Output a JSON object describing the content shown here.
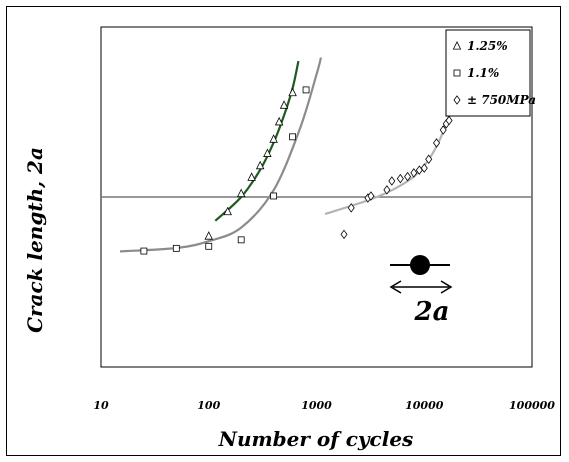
{
  "chart_data": {
    "type": "scatter",
    "title": "",
    "xlabel": "Number of cycles",
    "ylabel": "Crack length, 2a",
    "xscale": "log",
    "xlim": [
      10,
      100000
    ],
    "ylim": [
      0,
      1
    ],
    "x_tick_labels": [
      "10",
      "100",
      "1000",
      "10000",
      "100000"
    ],
    "x_tick_values": [
      10,
      100,
      1000,
      10000,
      100000
    ],
    "reference_line_y": 0.5,
    "legend": {
      "position": "top-right"
    },
    "series": [
      {
        "name": "1.25%",
        "marker": "triangle",
        "color": "#000000",
        "points": [
          [
            100,
            0.385
          ],
          [
            150,
            0.457
          ],
          [
            200,
            0.51
          ],
          [
            250,
            0.558
          ],
          [
            300,
            0.592
          ],
          [
            350,
            0.628
          ],
          [
            400,
            0.67
          ],
          [
            450,
            0.721
          ],
          [
            500,
            0.77
          ],
          [
            600,
            0.807
          ]
        ],
        "fit": {
          "color": "#1f5a1f",
          "points": [
            [
              115,
              0.43
            ],
            [
              200,
              0.5
            ],
            [
              300,
              0.58
            ],
            [
              400,
              0.66
            ],
            [
              500,
              0.74
            ],
            [
              600,
              0.82
            ],
            [
              680,
              0.9
            ]
          ]
        }
      },
      {
        "name": "1.1%",
        "marker": "square",
        "color": "#000000",
        "points": [
          [
            25,
            0.341
          ],
          [
            50,
            0.349
          ],
          [
            100,
            0.355
          ],
          [
            200,
            0.374
          ],
          [
            400,
            0.503
          ],
          [
            600,
            0.677
          ],
          [
            800,
            0.815
          ]
        ],
        "fit": {
          "color": "#8c8c8c",
          "points": [
            [
              15,
              0.34
            ],
            [
              50,
              0.35
            ],
            [
              100,
              0.37
            ],
            [
              200,
              0.41
            ],
            [
              400,
              0.52
            ],
            [
              700,
              0.7
            ],
            [
              1000,
              0.86
            ],
            [
              1100,
              0.91
            ]
          ]
        }
      },
      {
        "name": "± 750MPa",
        "marker": "diamond",
        "color": "#000000",
        "points": [
          [
            1800,
            0.39
          ],
          [
            2100,
            0.468
          ],
          [
            3000,
            0.497
          ],
          [
            3200,
            0.503
          ],
          [
            4500,
            0.521
          ],
          [
            5000,
            0.547
          ],
          [
            6000,
            0.554
          ],
          [
            7000,
            0.56
          ],
          [
            8000,
            0.571
          ],
          [
            9000,
            0.579
          ],
          [
            10000,
            0.585
          ],
          [
            11000,
            0.611
          ],
          [
            13000,
            0.659
          ],
          [
            15000,
            0.697
          ],
          [
            16000,
            0.715
          ],
          [
            17000,
            0.725
          ]
        ],
        "fit": {
          "color": "#b3b3b3",
          "points": [
            [
              1200,
              0.45
            ],
            [
              3000,
              0.49
            ],
            [
              5000,
              0.52
            ],
            [
              8000,
              0.56
            ],
            [
              11000,
              0.61
            ],
            [
              14000,
              0.67
            ],
            [
              17000,
              0.74
            ]
          ]
        }
      }
    ],
    "inset_label": "2a"
  }
}
